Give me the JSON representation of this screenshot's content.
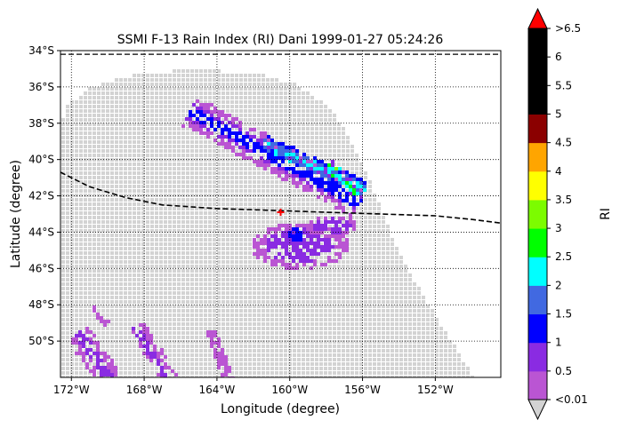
{
  "chart_data": {
    "type": "heatmap",
    "title": "SSMI F-13 Rain Index (RI) Dani 1999-01-27 05:24:26",
    "xlabel": "Longitude (degree)",
    "ylabel": "Latitude (degree)",
    "xlim": [
      -172.6,
      -148.4
    ],
    "ylim": [
      -52.0,
      -34.0
    ],
    "x_ticks": [
      -172,
      -168,
      -164,
      -160,
      -156,
      -152
    ],
    "x_tick_labels": [
      "172°W",
      "168°W",
      "164°W",
      "160°W",
      "156°W",
      "152°W"
    ],
    "y_ticks": [
      -34,
      -36,
      -38,
      -40,
      -42,
      -44,
      -46,
      -48,
      -50
    ],
    "y_tick_labels": [
      "34°S",
      "36°S",
      "38°S",
      "40°S",
      "42°S",
      "44°S",
      "46°S",
      "48°S",
      "50°S"
    ],
    "grid": "dotted",
    "swath_background_color": "#d3d3d3",
    "colorbar": {
      "label": "RI",
      "levels": [
        0.01,
        0.5,
        1,
        1.5,
        2,
        2.5,
        3,
        3.5,
        4,
        4.5,
        5,
        5.5,
        6,
        6.5
      ],
      "tick_labels": [
        "<0.01",
        "0.5",
        "1",
        "1.5",
        "2",
        "2.5",
        "3",
        "3.5",
        "4",
        "4.5",
        "5",
        "5.5",
        "6",
        ">6.5"
      ],
      "colors": [
        "#ba55d3",
        "#8a2be2",
        "#0000ff",
        "#4169e1",
        "#00ffff",
        "#00ff00",
        "#7cfc00",
        "#ffff00",
        "#ffa500",
        "#8b0000",
        "#000000",
        "#000000",
        "#000000"
      ],
      "under_color": "#d3d3d3",
      "over_color": "#ff0000"
    },
    "track": {
      "name": "storm track",
      "color": "#000000",
      "style": "dashed",
      "points": [
        [
          -172.6,
          -40.7
        ],
        [
          -171,
          -41.5
        ],
        [
          -169,
          -42.1
        ],
        [
          -167,
          -42.5
        ],
        [
          -164,
          -42.7
        ],
        [
          -161,
          -42.8
        ],
        [
          -158,
          -42.9
        ],
        [
          -155,
          -43.0
        ],
        [
          -152,
          -43.1
        ],
        [
          -150,
          -43.3
        ],
        [
          -148.4,
          -43.5
        ]
      ]
    },
    "top_line": {
      "lat": -34.2,
      "style": "dashed"
    },
    "storm_center": {
      "lon": -160.5,
      "lat": -42.9,
      "color": "#ff0000"
    },
    "rain_regions": [
      {
        "type": "band",
        "lon_start": -165.5,
        "lat_start": -37.3,
        "lon_end": -156.3,
        "lat_end": -42.3,
        "width_deg": 1.6,
        "values": [
          0.3,
          0.8,
          1.2
        ]
      },
      {
        "type": "band",
        "lon_start": -161.5,
        "lat_start": -39.0,
        "lon_end": -156.0,
        "lat_end": -41.5,
        "width_deg": 0.7,
        "values": [
          1.3,
          1.8,
          2.2
        ]
      },
      {
        "type": "band",
        "lon_start": -158.0,
        "lat_start": -40.3,
        "lon_end": -156.5,
        "lat_end": -41.8,
        "width_deg": 0.6,
        "values": [
          0.9,
          1.6,
          2.3
        ]
      },
      {
        "type": "blob",
        "lon": -157.7,
        "lat": -40.4,
        "r_lon": 0.3,
        "r_lat": 0.2,
        "values": [
          2.7,
          3.2
        ]
      },
      {
        "type": "blob",
        "lon": -159.5,
        "lat": -44.6,
        "r_lon": 2.7,
        "r_lat": 1.3,
        "values": [
          0.2,
          0.6
        ]
      },
      {
        "type": "blob",
        "lon": -159.8,
        "lat": -44.0,
        "r_lon": 0.7,
        "r_lat": 0.5,
        "values": [
          0.9,
          1.2
        ]
      },
      {
        "type": "blob",
        "lon": -157.8,
        "lat": -43.5,
        "r_lon": 1.5,
        "r_lat": 0.6,
        "values": [
          0.2,
          0.6
        ]
      },
      {
        "type": "band",
        "lon_start": -171.7,
        "lat_start": -49.5,
        "lon_end": -170.0,
        "lat_end": -52.0,
        "width_deg": 1.2,
        "values": [
          0.2,
          0.7
        ]
      },
      {
        "type": "band",
        "lon_start": -168.5,
        "lat_start": -49.2,
        "lon_end": -166.8,
        "lat_end": -52.0,
        "width_deg": 0.9,
        "values": [
          0.3,
          0.7
        ]
      },
      {
        "type": "band",
        "lon_start": -164.5,
        "lat_start": -49.4,
        "lon_end": -163.5,
        "lat_end": -52.0,
        "width_deg": 0.5,
        "values": [
          0.2,
          0.4
        ]
      },
      {
        "type": "band",
        "lon_start": -171.0,
        "lat_start": -48.2,
        "lon_end": -170.2,
        "lat_end": -49.0,
        "width_deg": 0.3,
        "values": [
          0.2
        ]
      }
    ]
  }
}
